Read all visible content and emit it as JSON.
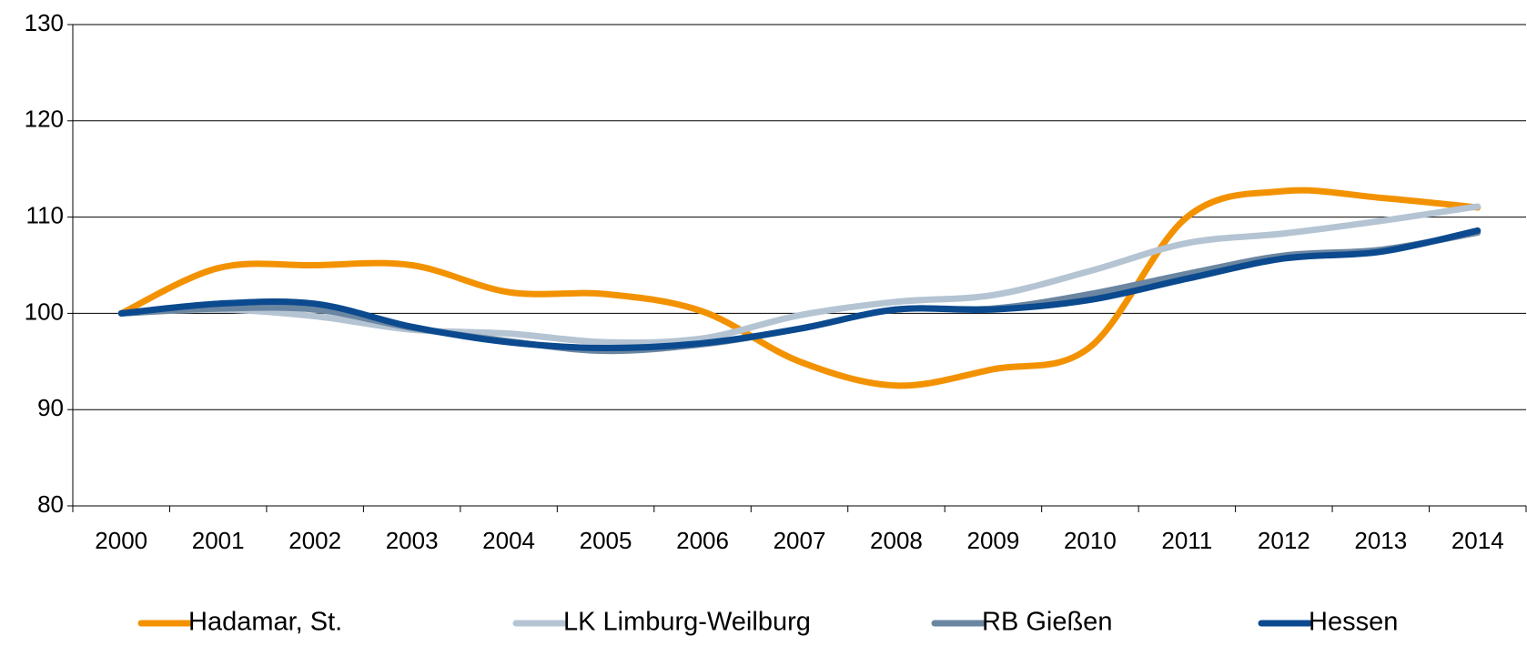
{
  "chart_data": {
    "type": "line",
    "categories": [
      "2000",
      "2001",
      "2002",
      "2003",
      "2004",
      "2005",
      "2006",
      "2007",
      "2008",
      "2009",
      "2010",
      "2011",
      "2012",
      "2013",
      "2014"
    ],
    "series": [
      {
        "name": "Hadamar, St.",
        "color": "#f39200",
        "values": [
          100,
          104.7,
          105,
          105,
          102.2,
          102,
          100.2,
          95,
          92.5,
          94.2,
          96.5,
          110,
          112.7,
          112,
          111
        ]
      },
      {
        "name": "LK Limburg-Weilburg",
        "color": "#b4c4d3",
        "values": [
          100,
          100.4,
          99.7,
          98.3,
          97.9,
          97,
          97.4,
          99.8,
          101.2,
          101.9,
          104.4,
          107.3,
          108.3,
          109.6,
          111.1
        ]
      },
      {
        "name": "RB Gießen",
        "color": "#6b86a0",
        "values": [
          100,
          100.5,
          100.4,
          98.5,
          97.1,
          96.1,
          96.8,
          98.4,
          100.4,
          100.5,
          102,
          104.1,
          106,
          106.6,
          108.4
        ]
      },
      {
        "name": "Hessen",
        "color": "#0b4a8f",
        "values": [
          100,
          101,
          101,
          98.6,
          97,
          96.4,
          96.9,
          98.4,
          100.4,
          100.4,
          101.4,
          103.6,
          105.7,
          106.4,
          108.6
        ]
      }
    ],
    "ylim": [
      80,
      130
    ],
    "yticks": [
      80,
      90,
      100,
      110,
      120,
      130
    ],
    "grid": true,
    "legend": "bottom"
  }
}
